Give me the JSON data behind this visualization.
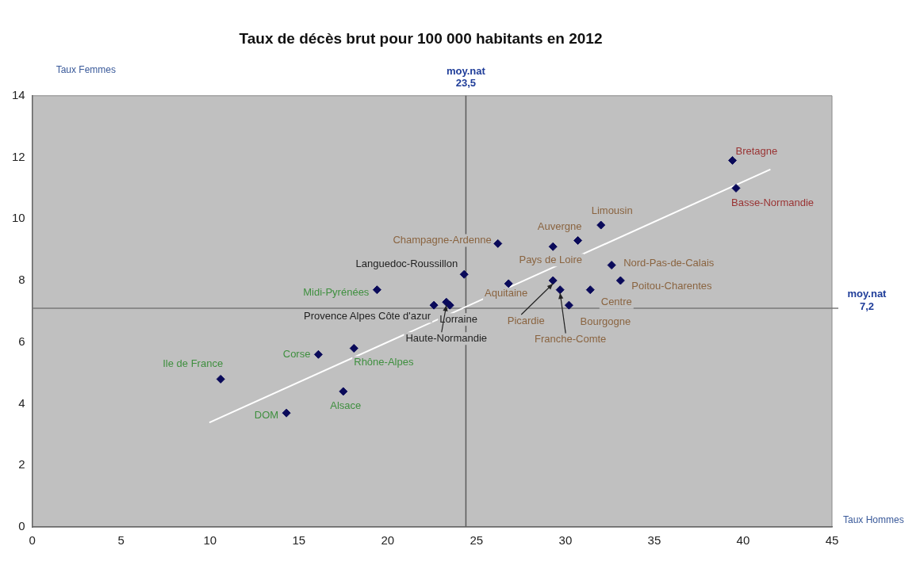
{
  "chart_data": {
    "type": "scatter",
    "title": "Taux de décès brut pour 100 000 habitants en 2012",
    "xlabel": "Taux Hommes",
    "ylabel": "Taux Femmes",
    "xlim": [
      0,
      45
    ],
    "xticks": [
      0,
      5,
      10,
      15,
      20,
      25,
      30,
      35,
      40,
      45
    ],
    "ylim": [
      0,
      14
    ],
    "yticks": [
      0,
      2,
      4,
      6,
      8,
      10,
      12,
      14
    ],
    "marker": "diamond",
    "ref_lines": [
      {
        "axis": "x",
        "value": 24.4,
        "label": "moy.nat 23,5",
        "color": "#5a5a5a"
      },
      {
        "axis": "y",
        "value": 7.1,
        "label": "moy.nat 7,2",
        "color": "#7a7a7a"
      }
    ],
    "series": [
      {
        "color": "#0a0a5a",
        "x": [
          19.4,
          10.6,
          16.1,
          18.1,
          17.5,
          14.3
        ],
        "values": [
          7.7,
          4.8,
          5.6,
          5.8,
          4.4,
          3.7
        ],
        "value_labels": [
          "Midi-Pyrénées",
          "Ile de France",
          "Corse",
          "Rhône-Alpes",
          "Alsace",
          "DOM"
        ]
      },
      {
        "color": "#0a0a5a",
        "x": [
          24.3,
          22.6,
          23.5,
          23.3
        ],
        "values": [
          8.2,
          7.2,
          7.2,
          7.3
        ],
        "value_labels": [
          "Languedoc-Roussillon",
          "Provence Alpes Côte d'azur",
          "Lorraine",
          "Haute-Normandie"
        ]
      },
      {
        "color": "#0a0a5a",
        "x": [
          26.2,
          30.7,
          32.0,
          29.3,
          26.8,
          32.6,
          33.1,
          31.4,
          29.3,
          30.2,
          29.7
        ],
        "values": [
          9.2,
          9.3,
          9.8,
          9.1,
          7.9,
          8.5,
          8.0,
          7.7,
          8.0,
          7.2,
          7.7
        ],
        "value_labels": [
          "Champagne-Ardenne",
          "Auvergne",
          "Limousin",
          "Pays de Loire",
          "Aquitaine",
          "Nord-Pas-de-Calais",
          "Poitou-Charentes",
          "Centre",
          "Picardie",
          "Bourgogne",
          "Franche-Comte"
        ]
      },
      {
        "color": "#0a0a5a",
        "x": [
          39.4,
          39.6
        ],
        "values": [
          11.9,
          11.0
        ],
        "value_labels": [
          "Bretagne",
          "Basse-Normandie"
        ]
      },
      {
        "type": "line",
        "color": "#ffffff",
        "marker": "none",
        "x": [
          10,
          41.5
        ],
        "values": [
          3.4,
          11.6
        ]
      }
    ]
  }
}
